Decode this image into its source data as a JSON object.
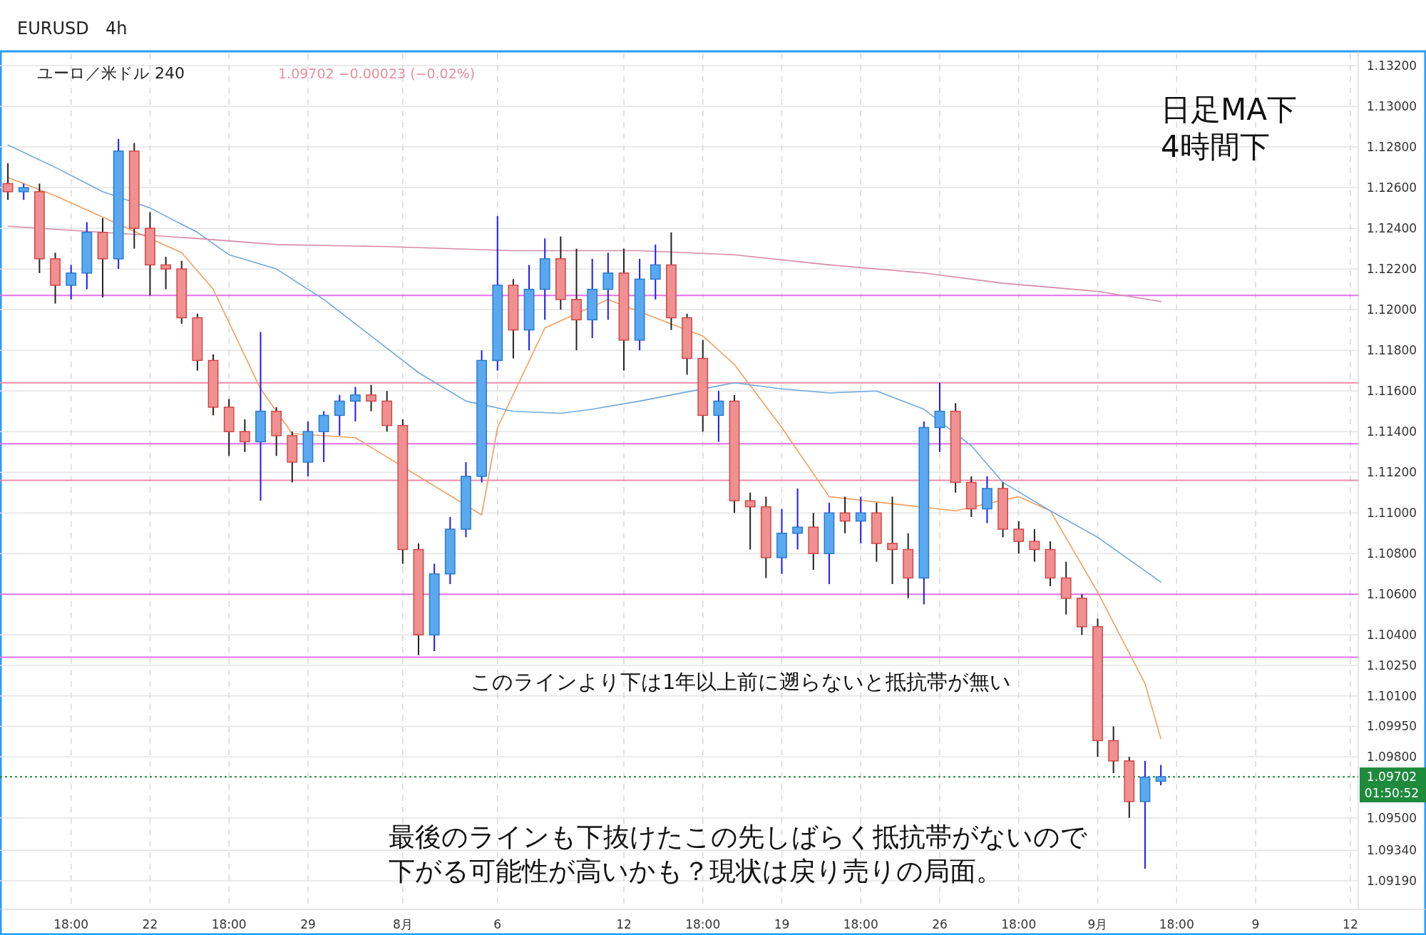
{
  "chart_data": {
    "type": "candlestick",
    "title": "EURUSD",
    "subtitle": "4h",
    "annotations": [
      "ユーロ／米ドル  240",
      "1.09702  −0.00023 (−0.02%)",
      "日足MA下\n4時間下",
      "このラインより下は1年以上前に遡らないと抵抗帯が無い",
      "最後のラインも下抜けたこの先しばらく抵抗帯がないので",
      "下がる可能性が高いかも？現状は戻り売りの局面。",
      "01:50:52"
    ],
    "categories": [
      null,
      null,
      null,
      null,
      "18:00",
      null,
      null,
      null,
      null,
      "22",
      null,
      null,
      null,
      null,
      "18:00",
      null,
      null,
      null,
      null,
      "29",
      null,
      null,
      null,
      null,
      null,
      "8月",
      null,
      null,
      null,
      null,
      null,
      "6",
      null,
      null,
      null,
      null,
      null,
      null,
      null,
      "12",
      null,
      null,
      null,
      null,
      "18:00",
      null,
      null,
      null,
      null,
      "19",
      null,
      null,
      null,
      null,
      "18:00",
      null,
      null,
      null,
      null,
      "26",
      null,
      null,
      null,
      null,
      "18:00",
      null,
      null,
      null,
      null,
      "9月",
      null,
      null,
      null,
      null,
      "18:00",
      null,
      null,
      null,
      null,
      "9",
      null,
      null,
      null,
      null,
      null,
      "12"
    ],
    "ohlc": [
      [
        1.1262,
        1.1272,
        1.1254,
        1.1258
      ],
      [
        1.1258,
        1.1262,
        1.1254,
        1.126
      ],
      [
        1.1258,
        1.1262,
        1.1218,
        1.1225
      ],
      [
        1.1225,
        1.1228,
        1.1203,
        1.1212
      ],
      [
        1.1212,
        1.1222,
        1.1205,
        1.1218
      ],
      [
        1.1218,
        1.1243,
        1.121,
        1.1238
      ],
      [
        1.1238,
        1.1245,
        1.1206,
        1.1225
      ],
      [
        1.1225,
        1.1284,
        1.122,
        1.1278
      ],
      [
        1.1278,
        1.1282,
        1.123,
        1.124
      ],
      [
        1.124,
        1.1248,
        1.1207,
        1.1222
      ],
      [
        1.1222,
        1.1226,
        1.121,
        1.122
      ],
      [
        1.122,
        1.1224,
        1.1193,
        1.1196
      ],
      [
        1.1196,
        1.1198,
        1.117,
        1.1175
      ],
      [
        1.1175,
        1.1178,
        1.1148,
        1.1152
      ],
      [
        1.1152,
        1.1156,
        1.1128,
        1.114
      ],
      [
        1.114,
        1.1146,
        1.113,
        1.1135
      ],
      [
        1.1135,
        1.1189,
        1.1106,
        1.115
      ],
      [
        1.115,
        1.1152,
        1.1128,
        1.1138
      ],
      [
        1.1138,
        1.114,
        1.1115,
        1.1125
      ],
      [
        1.1125,
        1.1145,
        1.1118,
        1.114
      ],
      [
        1.114,
        1.115,
        1.1125,
        1.1148
      ],
      [
        1.1148,
        1.1158,
        1.1138,
        1.1155
      ],
      [
        1.1155,
        1.1162,
        1.1145,
        1.1158
      ],
      [
        1.1158,
        1.1163,
        1.115,
        1.1155
      ],
      [
        1.1155,
        1.116,
        1.114,
        1.1143
      ],
      [
        1.1143,
        1.1146,
        1.1075,
        1.1082
      ],
      [
        1.1082,
        1.1085,
        1.103,
        1.104
      ],
      [
        1.104,
        1.1075,
        1.1032,
        1.107
      ],
      [
        1.107,
        1.1098,
        1.1065,
        1.1092
      ],
      [
        1.1092,
        1.1125,
        1.1088,
        1.1118
      ],
      [
        1.1118,
        1.118,
        1.1115,
        1.1175
      ],
      [
        1.1175,
        1.1246,
        1.117,
        1.1212
      ],
      [
        1.1212,
        1.1215,
        1.1176,
        1.119
      ],
      [
        1.119,
        1.1222,
        1.118,
        1.121
      ],
      [
        1.121,
        1.1235,
        1.1195,
        1.1225
      ],
      [
        1.1225,
        1.1236,
        1.12,
        1.1205
      ],
      [
        1.1205,
        1.123,
        1.118,
        1.1195
      ],
      [
        1.1195,
        1.1225,
        1.1186,
        1.121
      ],
      [
        1.121,
        1.1228,
        1.1195,
        1.1218
      ],
      [
        1.1218,
        1.123,
        1.117,
        1.1185
      ],
      [
        1.1185,
        1.1225,
        1.118,
        1.1215
      ],
      [
        1.1215,
        1.1232,
        1.1205,
        1.1222
      ],
      [
        1.1222,
        1.1238,
        1.119,
        1.1196
      ],
      [
        1.1196,
        1.1198,
        1.1168,
        1.1176
      ],
      [
        1.1176,
        1.1185,
        1.114,
        1.1148
      ],
      [
        1.1148,
        1.116,
        1.1135,
        1.1155
      ],
      [
        1.1155,
        1.1158,
        1.11,
        1.1106
      ],
      [
        1.1106,
        1.111,
        1.1082,
        1.1103
      ],
      [
        1.1103,
        1.1108,
        1.1068,
        1.1078
      ],
      [
        1.1078,
        1.1102,
        1.107,
        1.109
      ],
      [
        1.109,
        1.1112,
        1.1082,
        1.1093
      ],
      [
        1.1093,
        1.11,
        1.1072,
        1.108
      ],
      [
        1.108,
        1.1105,
        1.1065,
        1.11
      ],
      [
        1.11,
        1.1108,
        1.109,
        1.1096
      ],
      [
        1.1096,
        1.1108,
        1.1085,
        1.11
      ],
      [
        1.11,
        1.1105,
        1.1076,
        1.1085
      ],
      [
        1.1085,
        1.1108,
        1.1065,
        1.1082
      ],
      [
        1.1082,
        1.109,
        1.1058,
        1.1068
      ],
      [
        1.1068,
        1.1145,
        1.1055,
        1.1142
      ],
      [
        1.1142,
        1.1164,
        1.113,
        1.115
      ],
      [
        1.115,
        1.1154,
        1.111,
        1.1115
      ],
      [
        1.1115,
        1.1118,
        1.1098,
        1.1102
      ],
      [
        1.1102,
        1.1118,
        1.1095,
        1.1112
      ],
      [
        1.1112,
        1.1115,
        1.1088,
        1.1092
      ],
      [
        1.1092,
        1.1096,
        1.108,
        1.1086
      ],
      [
        1.1086,
        1.1092,
        1.1076,
        1.1082
      ],
      [
        1.1082,
        1.1086,
        1.1064,
        1.1068
      ],
      [
        1.1068,
        1.1076,
        1.105,
        1.1058
      ],
      [
        1.1058,
        1.106,
        1.104,
        1.1044
      ],
      [
        1.1044,
        1.1048,
        1.098,
        1.0988
      ],
      [
        1.0988,
        1.0995,
        1.0972,
        1.0978
      ],
      [
        1.0978,
        1.098,
        1.095,
        1.0958
      ],
      [
        1.0958,
        1.0978,
        1.0925,
        1.097
      ],
      [
        1.0968,
        1.0976,
        1.0966,
        1.09702
      ],
      null,
      null,
      null,
      null,
      null,
      null,
      null,
      null,
      null,
      null,
      null,
      null
    ],
    "series": [
      {
        "type": "line",
        "color": "#f0a060",
        "values": [
          1.1265,
          null,
          null,
          1.1256,
          null,
          null,
          null,
          null,
          null,
          null,
          null,
          1.1228,
          null,
          1.121,
          null,
          null,
          1.1161,
          null,
          1.1139,
          null,
          null,
          null,
          1.1137,
          null,
          null,
          null,
          null,
          null,
          null,
          null,
          1.1099,
          1.1142,
          null,
          null,
          1.1191,
          null,
          null,
          null,
          1.1205,
          null,
          null,
          null,
          null,
          null,
          1.1187,
          null,
          1.1173,
          null,
          null,
          1.1142,
          null,
          null,
          1.1108,
          null,
          null,
          null,
          null,
          null,
          null,
          null,
          1.1101,
          null,
          null,
          null,
          1.1108,
          null,
          1.1101,
          null,
          null,
          1.1061,
          null,
          null,
          1.1016,
          1.0989,
          null,
          null,
          null,
          null,
          null,
          null,
          null,
          null,
          null,
          null,
          null,
          null
        ]
      },
      {
        "type": "line",
        "color": "#6fa8dc",
        "values": [
          1.1281,
          null,
          null,
          1.127,
          null,
          null,
          1.1258,
          null,
          null,
          1.125,
          null,
          null,
          1.1238,
          null,
          1.1227,
          null,
          null,
          1.122,
          null,
          null,
          1.1205,
          null,
          null,
          1.1187,
          null,
          null,
          1.1169,
          null,
          null,
          1.1155,
          null,
          null,
          1.115,
          null,
          null,
          1.1149,
          null,
          1.1151,
          null,
          null,
          1.1155,
          null,
          null,
          null,
          null,
          null,
          1.1164,
          null,
          null,
          1.1161,
          null,
          null,
          1.1159,
          null,
          null,
          1.116,
          null,
          null,
          1.1151,
          null,
          null,
          1.1133,
          null,
          1.1115,
          null,
          null,
          1.1101,
          null,
          null,
          1.1088,
          null,
          null,
          null,
          1.1066,
          null,
          null,
          null,
          null,
          null,
          null,
          null,
          null,
          null,
          null,
          null,
          null
        ]
      },
      {
        "type": "line",
        "color": "#d48aa8",
        "values": [
          1.1241,
          null,
          null,
          null,
          null,
          null,
          1.1238,
          null,
          null,
          null,
          null,
          null,
          1.1235,
          null,
          null,
          null,
          null,
          1.1232,
          null,
          null,
          null,
          null,
          null,
          null,
          1.1231,
          null,
          null,
          null,
          null,
          null,
          null,
          null,
          1.1229,
          null,
          null,
          null,
          null,
          null,
          null,
          null,
          1.1229,
          null,
          null,
          null,
          null,
          null,
          1.1227,
          null,
          null,
          null,
          null,
          null,
          1.1222,
          null,
          null,
          null,
          null,
          null,
          1.1218,
          null,
          null,
          null,
          null,
          1.1213,
          null,
          null,
          null,
          null,
          null,
          1.1209,
          null,
          null,
          null,
          1.1204,
          null,
          null,
          null,
          null,
          null,
          null,
          null,
          null,
          null,
          null,
          null,
          null
        ]
      }
    ],
    "ylim": [
      1.0905,
      1.1326
    ],
    "yticks": [
      {
        "value": 1.132,
        "label": "1.13200"
      },
      {
        "value": 1.13,
        "label": "1.13000"
      },
      {
        "value": 1.128,
        "label": "1.12800"
      },
      {
        "value": 1.126,
        "label": "1.12600"
      },
      {
        "value": 1.124,
        "label": "1.12400"
      },
      {
        "value": 1.122,
        "label": "1.12200"
      },
      {
        "value": 1.12,
        "label": "1.12000"
      },
      {
        "value": 1.118,
        "label": "1.11800"
      },
      {
        "value": 1.116,
        "label": "1.11600"
      },
      {
        "value": 1.114,
        "label": "1.11400"
      },
      {
        "value": 1.112,
        "label": "1.11200"
      },
      {
        "value": 1.11,
        "label": "1.11000"
      },
      {
        "value": 1.108,
        "label": "1.10800"
      },
      {
        "value": 1.106,
        "label": "1.10600"
      },
      {
        "value": 1.104,
        "label": "1.10400"
      },
      {
        "value": 1.1025,
        "label": "1.10250"
      },
      {
        "value": 1.101,
        "label": "1.10100"
      },
      {
        "value": 1.0995,
        "label": "1.09950"
      },
      {
        "value": 1.098,
        "label": "1.09800"
      },
      {
        "value": 1.095,
        "label": "1.09500"
      },
      {
        "value": 1.0934,
        "label": "1.09340"
      },
      {
        "value": 1.0919,
        "label": "1.09190"
      }
    ],
    "ref_lines": [
      {
        "axis": "y",
        "value": 1.1207,
        "color": "#e070e8"
      },
      {
        "axis": "y",
        "value": 1.1164,
        "color": "#f08aa8"
      },
      {
        "axis": "y",
        "value": 1.1134,
        "color": "#e070e8"
      },
      {
        "axis": "y",
        "value": 1.1116,
        "color": "#f08aa8"
      },
      {
        "axis": "y",
        "value": 1.106,
        "color": "#e070e8"
      },
      {
        "axis": "y",
        "value": 1.1029,
        "color": "#e070e8"
      },
      {
        "axis": "y",
        "value": 1.09702,
        "label": "1.09702",
        "color": "#1e8a3c",
        "line_style": "dotted"
      }
    ],
    "grid": true
  }
}
